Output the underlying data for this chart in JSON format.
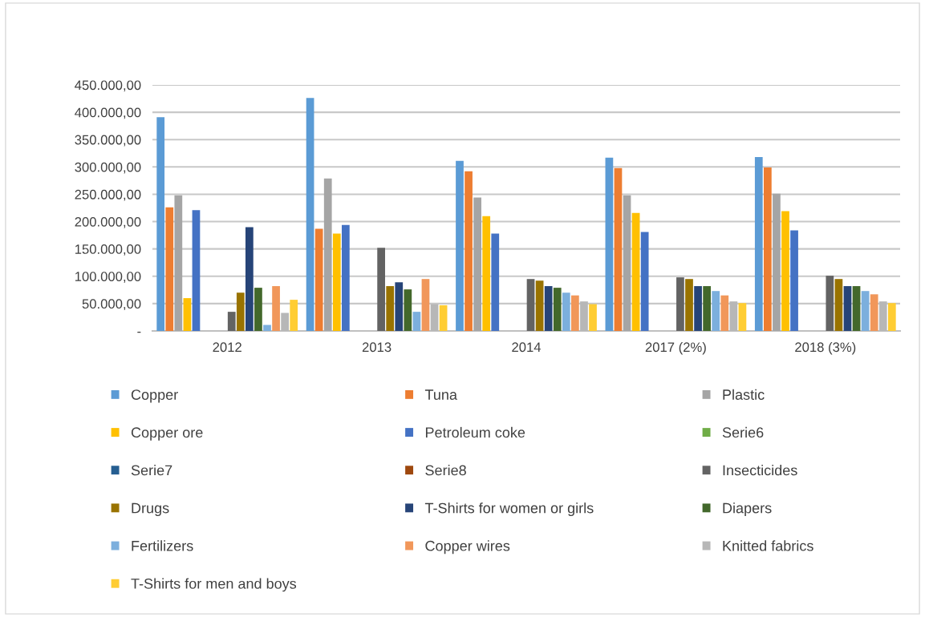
{
  "chart_data": {
    "type": "bar",
    "categories": [
      "2012",
      "2013",
      "2014",
      "2017 (2%)",
      "2018 (3%)"
    ],
    "series": [
      {
        "name": "Copper",
        "color": "#5b9bd5",
        "values": [
          391000,
          426000,
          311000,
          317000,
          318000
        ]
      },
      {
        "name": "Tuna",
        "color": "#ed7d31",
        "values": [
          226000,
          187000,
          292000,
          298000,
          299000
        ]
      },
      {
        "name": "Plastic",
        "color": "#a5a5a5",
        "values": [
          248000,
          279000,
          244000,
          248000,
          251000
        ]
      },
      {
        "name": "Copper ore",
        "color": "#ffc000",
        "values": [
          60000,
          178000,
          210000,
          216000,
          219000
        ]
      },
      {
        "name": "Petroleum coke",
        "color": "#4472c4",
        "values": [
          221000,
          194000,
          178000,
          181000,
          184000
        ]
      },
      {
        "name": "Serie6",
        "color": "#70ad47",
        "values": [
          null,
          null,
          null,
          null,
          null
        ]
      },
      {
        "name": "Serie7",
        "color": "#255e91",
        "values": [
          null,
          null,
          null,
          null,
          null
        ]
      },
      {
        "name": "Serie8",
        "color": "#9e480e",
        "values": [
          null,
          null,
          null,
          null,
          null
        ]
      },
      {
        "name": "Insecticides",
        "color": "#636363",
        "values": [
          35000,
          152000,
          95000,
          98000,
          101000
        ]
      },
      {
        "name": "Drugs",
        "color": "#997300",
        "values": [
          70000,
          82000,
          92000,
          95000,
          95000
        ]
      },
      {
        "name": "T-Shirts for women or girls",
        "color": "#264478",
        "values": [
          190000,
          89000,
          82000,
          82000,
          82000
        ]
      },
      {
        "name": "Diapers",
        "color": "#43682b",
        "values": [
          79000,
          76000,
          79000,
          82000,
          82000
        ]
      },
      {
        "name": "Fertilizers",
        "color": "#7cafdd",
        "values": [
          11000,
          35000,
          70000,
          73000,
          73000
        ]
      },
      {
        "name": "Copper wires",
        "color": "#f1975a",
        "values": [
          82000,
          95000,
          65000,
          65000,
          67000
        ]
      },
      {
        "name": "Knitted fabrics",
        "color": "#b7b7b7",
        "values": [
          33000,
          49000,
          54000,
          54000,
          54000
        ]
      },
      {
        "name": "T-Shirts for men and boys",
        "color": "#ffcd33",
        "values": [
          57000,
          47000,
          49000,
          51000,
          51000
        ]
      }
    ],
    "ylim": [
      0,
      450000
    ],
    "yticks": [
      {
        "value": 0,
        "label": "-"
      },
      {
        "value": 50000,
        "label": "50.000,00"
      },
      {
        "value": 100000,
        "label": "100.000,00"
      },
      {
        "value": 150000,
        "label": "150.000,00"
      },
      {
        "value": 200000,
        "label": "200.000,00"
      },
      {
        "value": 250000,
        "label": "250.000,00"
      },
      {
        "value": 300000,
        "label": "300.000,00"
      },
      {
        "value": 350000,
        "label": "350.000,00"
      },
      {
        "value": 400000,
        "label": "400.000,00"
      },
      {
        "value": 450000,
        "label": "450.000,00"
      }
    ],
    "grid": "y",
    "legend": "bottom"
  }
}
